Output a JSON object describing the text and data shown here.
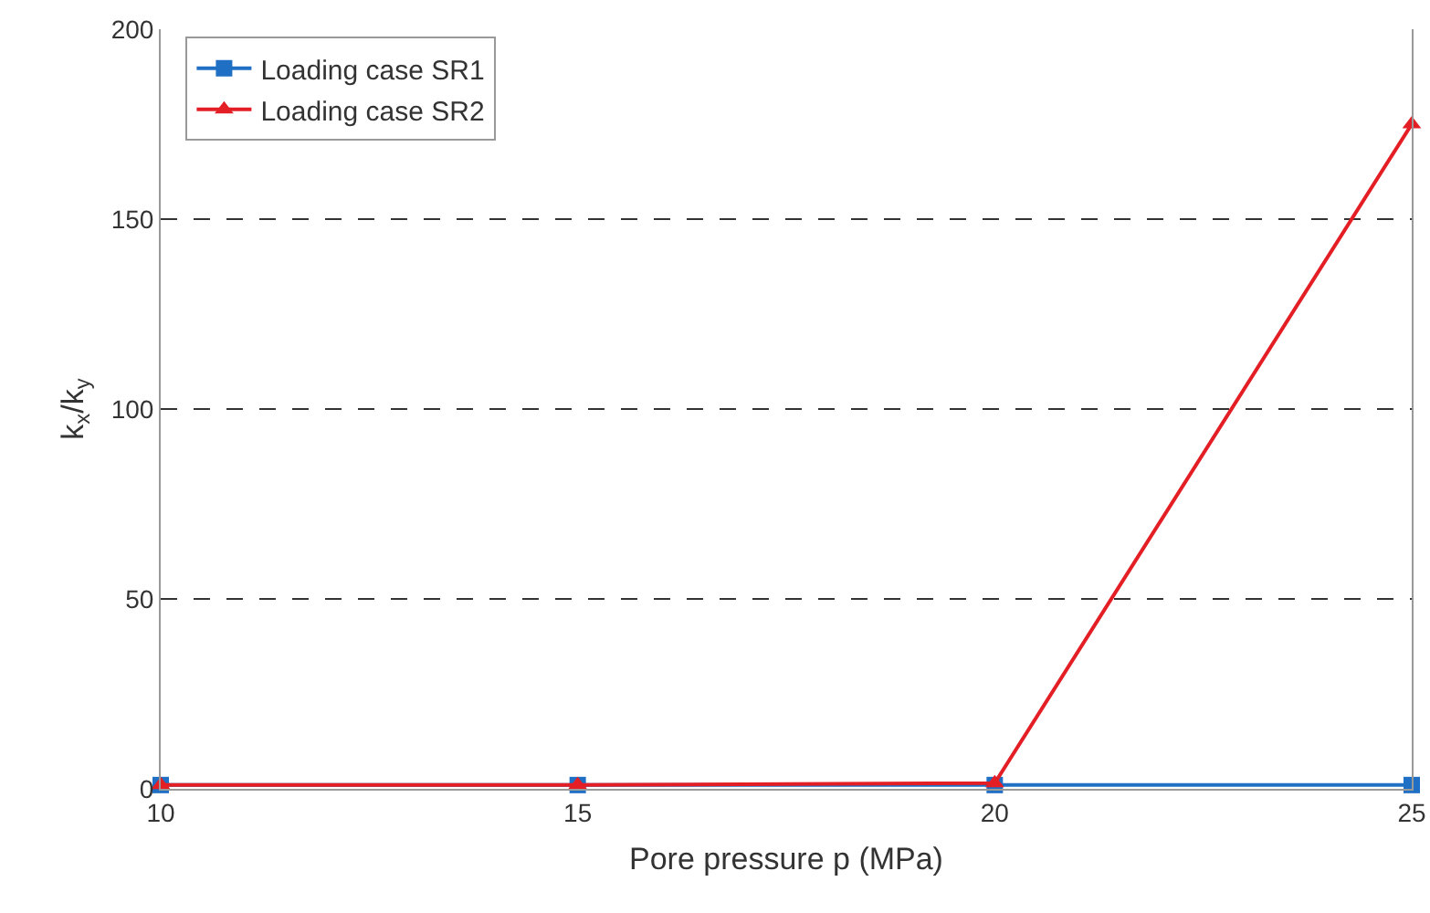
{
  "chart_data": {
    "type": "line",
    "xlabel": "Pore pressure p (MPa)",
    "ylabel": "k$_{x}$/k$_{y}$",
    "x": [
      10,
      15,
      20,
      25
    ],
    "series": [
      {
        "name": "Loading case SR1",
        "color": "#1f6fc5",
        "marker": "square",
        "values": [
          1,
          1,
          1,
          1
        ]
      },
      {
        "name": "Loading case SR2",
        "color": "#e31e24",
        "marker": "triangle",
        "values": [
          1,
          1,
          1.5,
          175
        ]
      }
    ],
    "xlim": [
      10,
      25
    ],
    "xticks": [
      10,
      15,
      20,
      25
    ],
    "ylim": [
      0,
      200
    ],
    "yticks": [
      0,
      50,
      100,
      150,
      200
    ],
    "grid": "y",
    "legend": "top left",
    "line_style": "solid"
  }
}
